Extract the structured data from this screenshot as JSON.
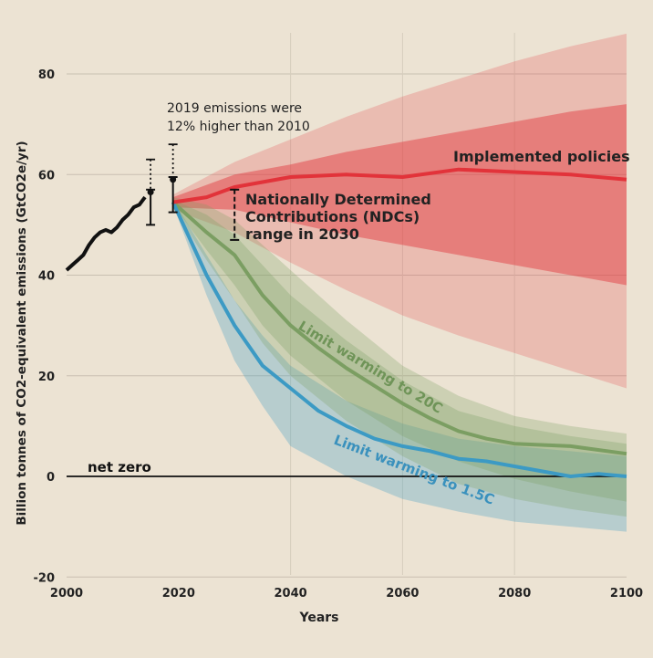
{
  "chart_data": {
    "type": "area",
    "title": "",
    "xlabel": "Years",
    "ylabel": "Billion tonnes of CO2-equivalent emissions (GtCO2e/yr)",
    "xlim": [
      2000,
      2100
    ],
    "ylim": [
      -20,
      85
    ],
    "x_ticks": [
      2000,
      2020,
      2040,
      2060,
      2080,
      2100
    ],
    "y_ticks": [
      -20,
      0,
      20,
      40,
      60,
      80
    ],
    "grid": true,
    "colors": {
      "historical": "#111111",
      "implemented": "#e2333a",
      "limit_2c": "#7b9e62",
      "limit_1_5c": "#3c9ac4",
      "net_zero": "#111111",
      "background": "#ece3d3"
    },
    "historical": {
      "x": [
        2000,
        2001,
        2002,
        2003,
        2004,
        2005,
        2006,
        2007,
        2008,
        2009,
        2010,
        2011,
        2012,
        2013,
        2014
      ],
      "y": [
        41,
        42,
        43,
        44,
        46,
        47.5,
        48.5,
        49,
        48.5,
        49.5,
        51,
        52,
        53.5,
        54,
        55.5
      ]
    },
    "series": [
      {
        "name": "Implemented policies",
        "x": [
          2019,
          2025,
          2030,
          2040,
          2050,
          2060,
          2070,
          2080,
          2090,
          2100
        ],
        "y": [
          54.5,
          55.5,
          57.5,
          59.5,
          60,
          59.5,
          61,
          60.5,
          60,
          59
        ],
        "band_inner": {
          "x": [
            2019,
            2030,
            2040,
            2050,
            2060,
            2070,
            2080,
            2090,
            2100
          ],
          "upper": [
            55.5,
            60,
            62,
            64.5,
            66.5,
            68.5,
            70.5,
            72.5,
            74
          ],
          "lower": [
            53.5,
            53,
            50.5,
            48,
            46,
            44,
            42,
            40,
            38
          ]
        },
        "band_outer": {
          "x": [
            2019,
            2030,
            2040,
            2050,
            2060,
            2070,
            2080,
            2090,
            2100
          ],
          "upper": [
            56,
            62.5,
            67,
            71.5,
            75.5,
            79,
            82.5,
            85.5,
            88
          ],
          "lower": [
            53,
            48.5,
            42.5,
            37,
            32,
            28,
            24.5,
            21,
            17.5
          ]
        }
      },
      {
        "name": "Limit warming to 20C",
        "x": [
          2019,
          2025,
          2030,
          2035,
          2040,
          2045,
          2050,
          2055,
          2060,
          2065,
          2070,
          2075,
          2080,
          2090,
          2100
        ],
        "y": [
          54.5,
          48.5,
          44,
          36,
          30,
          25.5,
          21.5,
          18,
          14.5,
          11.5,
          9,
          7.5,
          6.5,
          6,
          4.5
        ],
        "band_inner": {
          "x": [
            2019,
            2025,
            2030,
            2035,
            2040,
            2050,
            2060,
            2070,
            2080,
            2090,
            2100
          ],
          "upper": [
            55,
            52,
            48,
            42,
            36,
            27,
            19,
            13,
            10,
            8,
            6.5
          ],
          "lower": [
            54,
            45,
            38,
            30,
            24,
            15,
            8,
            3,
            -0.5,
            -3,
            -5
          ]
        },
        "band_outer": {
          "x": [
            2019,
            2025,
            2030,
            2035,
            2040,
            2050,
            2060,
            2070,
            2080,
            2090,
            2100
          ],
          "upper": [
            55.5,
            54,
            51,
            46,
            41,
            31,
            22,
            16,
            12,
            10,
            8.5
          ],
          "lower": [
            53.5,
            43,
            35,
            26.5,
            20,
            11,
            4,
            -1.5,
            -4.5,
            -6.5,
            -8
          ]
        }
      },
      {
        "name": "Limit warming to 1.5C",
        "x": [
          2019,
          2025,
          2030,
          2035,
          2040,
          2045,
          2050,
          2055,
          2060,
          2065,
          2070,
          2075,
          2080,
          2085,
          2090,
          2095,
          2100
        ],
        "y": [
          54.5,
          40,
          30,
          22,
          17.5,
          13,
          10,
          7.5,
          6,
          5,
          3.5,
          3,
          2,
          1,
          0,
          0.5,
          0
        ],
        "band": {
          "x": [
            2019,
            2025,
            2030,
            2035,
            2040,
            2050,
            2060,
            2070,
            2080,
            2090,
            2100
          ],
          "upper": [
            55,
            44,
            35,
            28,
            22,
            15,
            10.5,
            7.5,
            6,
            5,
            4
          ],
          "lower": [
            54,
            36,
            23,
            14,
            6,
            0,
            -4.5,
            -7,
            -9,
            -10,
            -11
          ]
        }
      }
    ],
    "error_bars": [
      {
        "x": 2015,
        "y": 56.5,
        "solid_low": 50,
        "solid_high": 57,
        "dotted_high": 63
      },
      {
        "x": 2019,
        "y": 59,
        "solid_low": 52.5,
        "solid_high": 59.5,
        "dotted_high": 66
      },
      {
        "x": 2030,
        "low": 47,
        "high": 57
      }
    ],
    "annotations": {
      "note_line1": "2019 emissions were",
      "note_line2": "12% higher than 2010",
      "ndc_line1": "Nationally Determined",
      "ndc_line2": "Contributions (NDCs)",
      "ndc_line3": "range in 2030",
      "implemented_label": "Implemented policies",
      "label_2c": "Limit warming to 20C",
      "label_1_5c": "Limit warming to 1.5C",
      "net_zero": "net zero"
    }
  }
}
